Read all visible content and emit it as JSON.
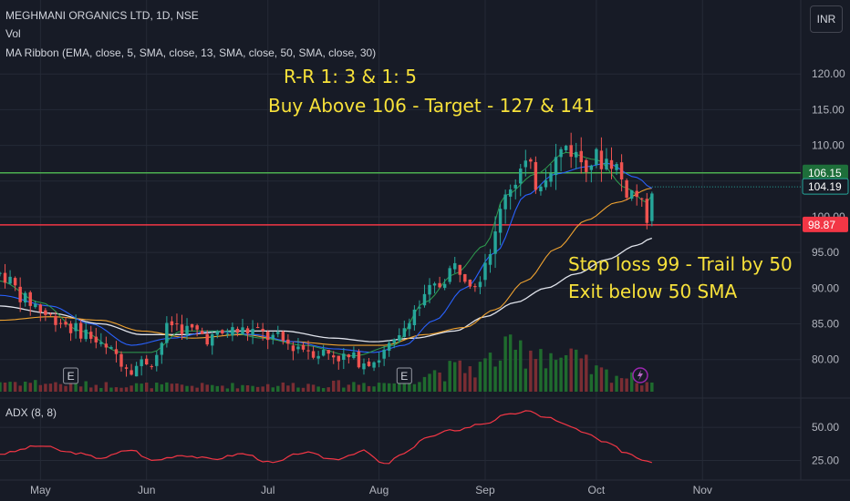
{
  "header": {
    "symbol": "MEGHMANI ORGANICS LTD, 1D, NSE",
    "vol_label": "Vol",
    "ma_label": "MA Ribbon (EMA, close, 5, SMA, close, 13, SMA, close, 50, SMA, close, 30)"
  },
  "currency_button": "INR",
  "annotations": {
    "rr": "R-R 1: 3 & 1: 5",
    "buy": "Buy Above 106 - Target - 127 & 141",
    "stop": "Stop loss 99 - Trail by 50",
    "exit": "Exit below 50 SMA"
  },
  "adx_label": "ADX (8, 8)",
  "earnings_marker": "E",
  "colors": {
    "background": "#171b26",
    "up": "#26a69a",
    "down": "#ef5350",
    "vol_up": "#1f6b2e",
    "vol_down": "#7a2d33",
    "green_level": "#4caf50",
    "red_level": "#f23645",
    "annotation": "#f7e13a",
    "ema5": "#2e9e4f",
    "sma13": "#2962ff",
    "sma30": "#f0a330",
    "sma50": "#e0e3eb",
    "adx": "#f23645"
  },
  "chart_data": [
    {
      "type": "candlestick",
      "title": "MEGHMANI ORGANICS LTD, 1D, NSE",
      "ylim": [
        75.5,
        125
      ],
      "y_ticks": [
        "120.00",
        "115.00",
        "110.00",
        "105.00",
        "100.00",
        "95.00",
        "90.00",
        "85.00",
        "80.00"
      ],
      "y_tick_values": [
        120,
        115,
        110,
        105,
        100,
        95,
        90,
        85,
        80
      ],
      "x_ticks": [
        "May",
        "Jun",
        "Jul",
        "Aug",
        "Sep",
        "Oct",
        "Nov"
      ],
      "x_tick_bars": [
        8,
        29,
        53,
        75,
        96,
        118,
        139
      ],
      "bar_count": 158,
      "horizontal_levels": [
        {
          "value": 106.15,
          "label": "106.15",
          "color": "#4caf50"
        },
        {
          "value": 98.87,
          "label": "98.87",
          "color": "#f23645"
        }
      ],
      "last_price": {
        "value": 104.19,
        "label": "104.19"
      },
      "earnings_bars": [
        14,
        80
      ],
      "series": [
        {
          "name": "Price",
          "anchors": [
            [
              0,
              92
            ],
            [
              6,
              88
            ],
            [
              10,
              86
            ],
            [
              16,
              84
            ],
            [
              22,
              81
            ],
            [
              26,
              79
            ],
            [
              30,
              80
            ],
            [
              34,
              85
            ],
            [
              38,
              84
            ],
            [
              42,
              83
            ],
            [
              46,
              84
            ],
            [
              50,
              84
            ],
            [
              54,
              83
            ],
            [
              58,
              82
            ],
            [
              64,
              81
            ],
            [
              70,
              80
            ],
            [
              74,
              80
            ],
            [
              78,
              82
            ],
            [
              82,
              87
            ],
            [
              86,
              90
            ],
            [
              90,
              93
            ],
            [
              94,
              91
            ],
            [
              98,
              97
            ],
            [
              100,
              104
            ],
            [
              104,
              107
            ],
            [
              106,
              105
            ],
            [
              110,
              108
            ],
            [
              112,
              110
            ],
            [
              115,
              108
            ],
            [
              118,
              108
            ],
            [
              121,
              108
            ],
            [
              124,
              104
            ],
            [
              126,
              103
            ],
            [
              128,
              100
            ],
            [
              129,
              104
            ]
          ]
        },
        {
          "name": "EMA 5",
          "anchors": [
            [
              0,
              91
            ],
            [
              8,
              88
            ],
            [
              16,
              84
            ],
            [
              24,
              81
            ],
            [
              30,
              81
            ],
            [
              36,
              84
            ],
            [
              44,
              84
            ],
            [
              52,
              83
            ],
            [
              60,
              82
            ],
            [
              70,
              80.5
            ],
            [
              78,
              82
            ],
            [
              84,
              88
            ],
            [
              90,
              92
            ],
            [
              96,
              96
            ],
            [
              100,
              103
            ],
            [
              106,
              106
            ],
            [
              112,
              109
            ],
            [
              118,
              108
            ],
            [
              124,
              104
            ],
            [
              128,
              102
            ],
            [
              129,
              103
            ]
          ]
        },
        {
          "name": "SMA 13",
          "anchors": [
            [
              0,
              89
            ],
            [
              10,
              87.5
            ],
            [
              18,
              85
            ],
            [
              26,
              82
            ],
            [
              34,
              83
            ],
            [
              42,
              84
            ],
            [
              50,
              83.5
            ],
            [
              58,
              82.5
            ],
            [
              66,
              81.5
            ],
            [
              74,
              81
            ],
            [
              80,
              82
            ],
            [
              86,
              85.5
            ],
            [
              92,
              90
            ],
            [
              98,
              95
            ],
            [
              104,
              103
            ],
            [
              110,
              106
            ],
            [
              116,
              107
            ],
            [
              120,
              107.5
            ],
            [
              126,
              105.5
            ],
            [
              129,
              104
            ]
          ]
        },
        {
          "name": "SMA 30",
          "anchors": [
            [
              0,
              85.5
            ],
            [
              10,
              86
            ],
            [
              20,
              85.5
            ],
            [
              28,
              84
            ],
            [
              38,
              83
            ],
            [
              48,
              83.5
            ],
            [
              58,
              82.5
            ],
            [
              68,
              82
            ],
            [
              76,
              82
            ],
            [
              84,
              83.5
            ],
            [
              92,
              84.5
            ],
            [
              98,
              87
            ],
            [
              104,
              91
            ],
            [
              110,
              95.5
            ],
            [
              116,
              99.5
            ],
            [
              122,
              102
            ],
            [
              129,
              104
            ]
          ]
        },
        {
          "name": "SMA 50",
          "anchors": [
            [
              0,
              87.5
            ],
            [
              10,
              86.5
            ],
            [
              20,
              85
            ],
            [
              28,
              83.5
            ],
            [
              36,
              83.5
            ],
            [
              46,
              84
            ],
            [
              56,
              84
            ],
            [
              66,
              83
            ],
            [
              74,
              82.5
            ],
            [
              82,
              83
            ],
            [
              90,
              84
            ],
            [
              96,
              86
            ],
            [
              102,
              88
            ],
            [
              108,
              90
            ],
            [
              114,
              92
            ],
            [
              120,
              94
            ],
            [
              126,
              96
            ],
            [
              129,
              97
            ]
          ]
        },
        {
          "name": "Vol",
          "anchors": [
            [
              0,
              0.5
            ],
            [
              20,
              0.35
            ],
            [
              40,
              0.3
            ],
            [
              60,
              0.35
            ],
            [
              78,
              0.45
            ],
            [
              86,
              1.0
            ],
            [
              94,
              1.2
            ],
            [
              100,
              1.9
            ],
            [
              106,
              2.2
            ],
            [
              112,
              1.6
            ],
            [
              120,
              0.9
            ],
            [
              129,
              0.5
            ]
          ]
        }
      ]
    },
    {
      "type": "line",
      "title": "ADX (8, 8)",
      "ylim": [
        15,
        70
      ],
      "y_ticks": [
        "50.00",
        "25.00"
      ],
      "y_tick_values": [
        50,
        25
      ],
      "series": [
        {
          "name": "ADX",
          "anchors": [
            [
              0,
              30
            ],
            [
              8,
              36
            ],
            [
              14,
              31
            ],
            [
              20,
              27
            ],
            [
              26,
              33
            ],
            [
              30,
              25
            ],
            [
              36,
              29
            ],
            [
              42,
              26
            ],
            [
              48,
              30
            ],
            [
              54,
              23
            ],
            [
              60,
              31
            ],
            [
              66,
              26
            ],
            [
              72,
              32
            ],
            [
              76,
              22
            ],
            [
              80,
              30
            ],
            [
              84,
              42
            ],
            [
              90,
              48
            ],
            [
              96,
              53
            ],
            [
              100,
              59
            ],
            [
              104,
              62
            ],
            [
              108,
              58
            ],
            [
              112,
              52
            ],
            [
              116,
              45
            ],
            [
              120,
              38
            ],
            [
              124,
              31
            ],
            [
              127,
              26
            ],
            [
              129,
              24
            ]
          ]
        }
      ]
    }
  ]
}
